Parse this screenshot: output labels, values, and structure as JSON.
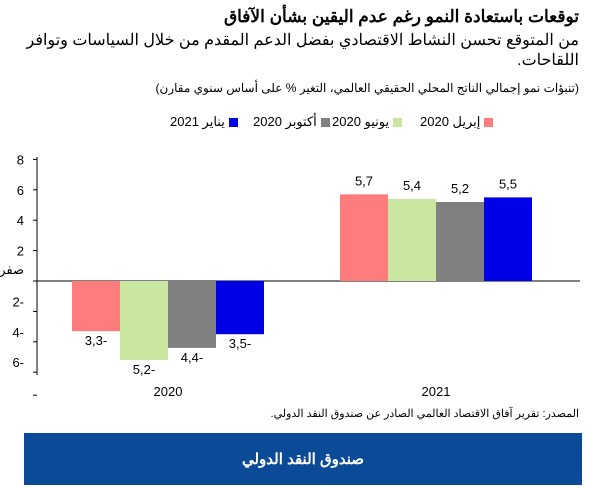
{
  "title": "توقعات باستعادة النمو رغم عدم اليقين بشأن الآفاق",
  "subtitle": "من المتوقع تحسن النشاط الاقتصادي بفضل الدعم المقدم من خلال السياسات وتوافر اللقاحات.",
  "note": "(تنبؤات نمو إجمالي الناتج المحلي الحقيقي العالمي، التغير % على أساس سنوي مقارن)",
  "source": "المصدر: تقرير آفاق الاقتصاد العالمي الصادر عن صندوق النقد الدولي.",
  "footer": "صندوق النقد الدولي",
  "chart_data": {
    "type": "bar",
    "categories": [
      "2020",
      "2021"
    ],
    "series": [
      {
        "name": "إبريل 2020",
        "color": "#ff7c7c",
        "values": [
          -3.3,
          5.7
        ],
        "labels": [
          "3,3-",
          "5,7"
        ]
      },
      {
        "name": "يونيو 2020",
        "color": "#c9e7a0",
        "values": [
          -5.2,
          5.4
        ],
        "labels": [
          "5,2-",
          "5,4"
        ]
      },
      {
        "name": "أكتوبر 2020",
        "color": "#808080",
        "values": [
          -4.4,
          5.2
        ],
        "labels": [
          "4,4-",
          "5,2"
        ]
      },
      {
        "name": "يناير 2021",
        "color": "#0000e6",
        "values": [
          -3.5,
          5.5
        ],
        "labels": [
          "3,5-",
          "5,5"
        ]
      }
    ],
    "yticks": [
      "8",
      "6",
      "4",
      "2",
      "صفر",
      "2-",
      "4-",
      "6-"
    ],
    "ylim": [
      -6,
      8
    ],
    "grid": false,
    "legend": "top"
  }
}
